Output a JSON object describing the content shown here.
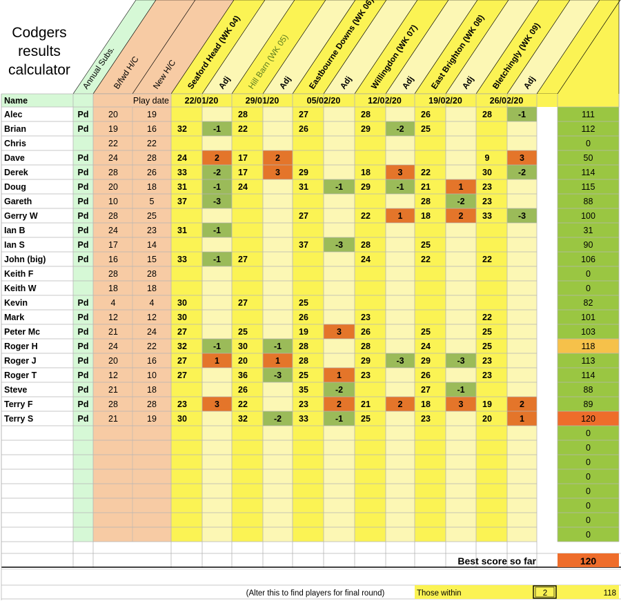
{
  "title_lines": [
    "Codgers",
    "results",
    "calculator"
  ],
  "headers": {
    "name": "Name",
    "annual_subs": "Annual Subs.",
    "bfwd_hc": "B/fwd H/C",
    "new_hc": "New H/C",
    "play_date": "Play date",
    "adj": "Adj"
  },
  "courses": [
    {
      "name": "Seaford Head (WK 04)",
      "date": "22/01/20"
    },
    {
      "name": "Hill Barn (WK 05)",
      "date": "29/01/20"
    },
    {
      "name": "Eastbourne Downs (WK 06)",
      "date": "05/02/20"
    },
    {
      "name": "Willingdon (WK 07)",
      "date": "12/02/20"
    },
    {
      "name": "East Brighton (WK 08)",
      "date": "19/02/20"
    },
    {
      "name": "Bletchingly (WK 09)",
      "date": "26/02/20"
    }
  ],
  "players": [
    {
      "name": "Alec",
      "paid": "Pd",
      "bfwd": "20",
      "newhc": "19",
      "scores": [
        [
          "",
          ""
        ],
        [
          "28",
          ""
        ],
        [
          "27",
          ""
        ],
        [
          "28",
          ""
        ],
        [
          "26",
          ""
        ],
        [
          "28",
          "-1"
        ]
      ],
      "total": "111"
    },
    {
      "name": "Brian",
      "paid": "Pd",
      "bfwd": "19",
      "newhc": "16",
      "scores": [
        [
          "32",
          "-1"
        ],
        [
          "22",
          ""
        ],
        [
          "26",
          ""
        ],
        [
          "29",
          "-2"
        ],
        [
          "25",
          ""
        ],
        [
          "",
          ""
        ]
      ],
      "total": "112"
    },
    {
      "name": "Chris",
      "paid": "",
      "bfwd": "22",
      "newhc": "22",
      "scores": [
        [
          "",
          ""
        ],
        [
          "",
          ""
        ],
        [
          "",
          ""
        ],
        [
          "",
          ""
        ],
        [
          "",
          ""
        ],
        [
          "",
          ""
        ]
      ],
      "total": "0"
    },
    {
      "name": "Dave",
      "paid": "Pd",
      "bfwd": "24",
      "newhc": "28",
      "scores": [
        [
          "24",
          "2"
        ],
        [
          "17",
          "2"
        ],
        [
          "",
          ""
        ],
        [
          "",
          ""
        ],
        [
          "",
          ""
        ],
        [
          "9",
          "3"
        ]
      ],
      "total": "50"
    },
    {
      "name": "Derek",
      "paid": "Pd",
      "bfwd": "28",
      "newhc": "26",
      "scores": [
        [
          "33",
          "-2"
        ],
        [
          "17",
          "3"
        ],
        [
          "29",
          ""
        ],
        [
          "18",
          "3"
        ],
        [
          "22",
          ""
        ],
        [
          "30",
          "-2"
        ]
      ],
      "total": "114"
    },
    {
      "name": "Doug",
      "paid": "Pd",
      "bfwd": "20",
      "newhc": "18",
      "scores": [
        [
          "31",
          "-1"
        ],
        [
          "24",
          ""
        ],
        [
          "31",
          "-1"
        ],
        [
          "29",
          "-1"
        ],
        [
          "21",
          "1"
        ],
        [
          "23",
          ""
        ]
      ],
      "total": "115"
    },
    {
      "name": "Gareth",
      "paid": "Pd",
      "bfwd": "10",
      "newhc": "5",
      "scores": [
        [
          "37",
          "-3"
        ],
        [
          "",
          ""
        ],
        [
          "",
          ""
        ],
        [
          "",
          ""
        ],
        [
          "28",
          "-2"
        ],
        [
          "23",
          ""
        ]
      ],
      "total": "88"
    },
    {
      "name": "Gerry W",
      "paid": "Pd",
      "bfwd": "28",
      "newhc": "25",
      "scores": [
        [
          "",
          ""
        ],
        [
          "",
          ""
        ],
        [
          "27",
          ""
        ],
        [
          "22",
          "1"
        ],
        [
          "18",
          "2"
        ],
        [
          "33",
          "-3"
        ]
      ],
      "total": "100"
    },
    {
      "name": "Ian B",
      "paid": "Pd",
      "bfwd": "24",
      "newhc": "23",
      "scores": [
        [
          "31",
          "-1"
        ],
        [
          "",
          ""
        ],
        [
          "",
          ""
        ],
        [
          "",
          ""
        ],
        [
          "",
          ""
        ],
        [
          "",
          ""
        ]
      ],
      "total": "31"
    },
    {
      "name": "Ian S",
      "paid": "Pd",
      "bfwd": "17",
      "newhc": "14",
      "scores": [
        [
          "",
          ""
        ],
        [
          "",
          ""
        ],
        [
          "37",
          "-3"
        ],
        [
          "28",
          ""
        ],
        [
          "25",
          ""
        ],
        [
          "",
          ""
        ]
      ],
      "total": "90"
    },
    {
      "name": "John (big)",
      "paid": "Pd",
      "bfwd": "16",
      "newhc": "15",
      "scores": [
        [
          "33",
          "-1"
        ],
        [
          "27",
          ""
        ],
        [
          "",
          ""
        ],
        [
          "24",
          ""
        ],
        [
          "22",
          ""
        ],
        [
          "22",
          ""
        ]
      ],
      "total": "106"
    },
    {
      "name": "Keith F",
      "paid": "",
      "bfwd": "28",
      "newhc": "28",
      "scores": [
        [
          "",
          ""
        ],
        [
          "",
          ""
        ],
        [
          "",
          ""
        ],
        [
          "",
          ""
        ],
        [
          "",
          ""
        ],
        [
          "",
          ""
        ]
      ],
      "total": "0"
    },
    {
      "name": "Keith W",
      "paid": "",
      "bfwd": "18",
      "newhc": "18",
      "scores": [
        [
          "",
          ""
        ],
        [
          "",
          ""
        ],
        [
          "",
          ""
        ],
        [
          "",
          ""
        ],
        [
          "",
          ""
        ],
        [
          "",
          ""
        ]
      ],
      "total": "0"
    },
    {
      "name": "Kevin",
      "paid": "Pd",
      "bfwd": "4",
      "newhc": "4",
      "scores": [
        [
          "30",
          ""
        ],
        [
          "27",
          ""
        ],
        [
          "25",
          ""
        ],
        [
          "",
          ""
        ],
        [
          "",
          ""
        ],
        [
          "",
          ""
        ]
      ],
      "total": "82"
    },
    {
      "name": "Mark",
      "paid": "Pd",
      "bfwd": "12",
      "newhc": "12",
      "scores": [
        [
          "30",
          ""
        ],
        [
          "",
          ""
        ],
        [
          "26",
          ""
        ],
        [
          "23",
          ""
        ],
        [
          "",
          ""
        ],
        [
          "22",
          ""
        ]
      ],
      "total": "101"
    },
    {
      "name": "Peter Mc",
      "paid": "Pd",
      "bfwd": "21",
      "newhc": "24",
      "scores": [
        [
          "27",
          ""
        ],
        [
          "25",
          ""
        ],
        [
          "19",
          "3"
        ],
        [
          "26",
          ""
        ],
        [
          "25",
          ""
        ],
        [
          "25",
          ""
        ]
      ],
      "total": "103"
    },
    {
      "name": "Roger H",
      "paid": "Pd",
      "bfwd": "24",
      "newhc": "22",
      "scores": [
        [
          "32",
          "-1"
        ],
        [
          "30",
          "-1"
        ],
        [
          "28",
          ""
        ],
        [
          "28",
          ""
        ],
        [
          "24",
          ""
        ],
        [
          "25",
          ""
        ]
      ],
      "total": "118"
    },
    {
      "name": "Roger J",
      "paid": "Pd",
      "bfwd": "20",
      "newhc": "16",
      "scores": [
        [
          "27",
          "1"
        ],
        [
          "20",
          "1"
        ],
        [
          "28",
          ""
        ],
        [
          "29",
          "-3"
        ],
        [
          "29",
          "-3"
        ],
        [
          "23",
          ""
        ]
      ],
      "total": "113"
    },
    {
      "name": "Roger T",
      "paid": "Pd",
      "bfwd": "12",
      "newhc": "10",
      "scores": [
        [
          "27",
          ""
        ],
        [
          "36",
          "-3"
        ],
        [
          "25",
          "1"
        ],
        [
          "23",
          ""
        ],
        [
          "26",
          ""
        ],
        [
          "23",
          ""
        ]
      ],
      "total": "114"
    },
    {
      "name": "Steve",
      "paid": "Pd",
      "bfwd": "21",
      "newhc": "18",
      "scores": [
        [
          "",
          ""
        ],
        [
          "26",
          ""
        ],
        [
          "35",
          "-2"
        ],
        [
          "",
          ""
        ],
        [
          "27",
          "-1"
        ],
        [
          "",
          ""
        ]
      ],
      "total": "88"
    },
    {
      "name": "Terry F",
      "paid": "Pd",
      "bfwd": "28",
      "newhc": "28",
      "scores": [
        [
          "23",
          "3"
        ],
        [
          "22",
          ""
        ],
        [
          "23",
          "2"
        ],
        [
          "21",
          "2"
        ],
        [
          "18",
          "3"
        ],
        [
          "19",
          "2"
        ]
      ],
      "total": "89"
    },
    {
      "name": "Terry S",
      "paid": "Pd",
      "bfwd": "21",
      "newhc": "19",
      "scores": [
        [
          "30",
          ""
        ],
        [
          "32",
          "-2"
        ],
        [
          "33",
          "-1"
        ],
        [
          "25",
          ""
        ],
        [
          "23",
          ""
        ],
        [
          "20",
          "1"
        ]
      ],
      "total": "120"
    }
  ],
  "blank_row_totals": [
    "0",
    "0",
    "0",
    "0",
    "0",
    "0",
    "0",
    "0"
  ],
  "highlights": {
    "Roger H": "second",
    "Terry S": "best"
  },
  "best_score": {
    "label": "Best score so far",
    "value": "120"
  },
  "footer": {
    "note": "(Alter this to find players for final round)",
    "within_label": "Those within",
    "within_value": "2",
    "threshold": "118"
  },
  "colors": {
    "green_light": "#d6f8d6",
    "peach": "#f7cba4",
    "yellow": "#fbf354",
    "yellow_pale": "#fcf7b4",
    "adj_minus": "#9bbb59",
    "adj_plus": "#e4752a",
    "total_green": "#9ac642",
    "total_second": "#f6c14a",
    "total_best": "#ee6d2b",
    "grid": "#b5b5b5"
  }
}
